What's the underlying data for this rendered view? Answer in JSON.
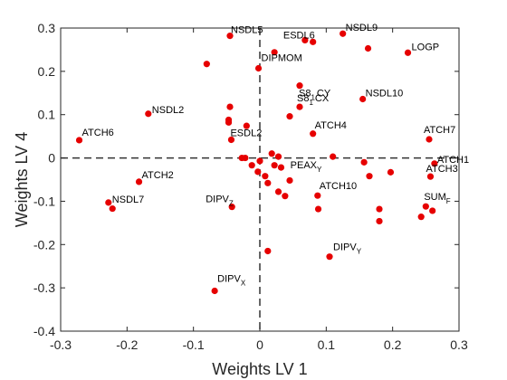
{
  "chart_data": {
    "type": "scatter",
    "title": "",
    "xlabel": "Weights LV 1",
    "ylabel": "Weights LV 4",
    "xlim": [
      -0.3,
      0.3
    ],
    "ylim": [
      -0.4,
      0.3
    ],
    "xticks": [
      "-0.3",
      "-0.2",
      "-0.1",
      "0",
      "0.1",
      "0.2",
      "0.3"
    ],
    "yticks": [
      "-0.4",
      "-0.3",
      "-0.2",
      "-0.1",
      "0",
      "0.1",
      "0.2",
      "0.3"
    ],
    "x_tick_values": [
      -0.3,
      -0.2,
      -0.1,
      0,
      0.1,
      0.2,
      0.3
    ],
    "y_tick_values": [
      -0.4,
      -0.3,
      -0.2,
      -0.1,
      0,
      0.1,
      0.2,
      0.3
    ],
    "grid": false,
    "zero_lines": "dashed",
    "marker_color": "#e60000",
    "points": [
      {
        "x": -0.045,
        "y": 0.282,
        "label": "NSDL5"
      },
      {
        "x": 0.068,
        "y": 0.272,
        "label": "ESDL6"
      },
      {
        "x": 0.125,
        "y": 0.287,
        "label": "NSDL9"
      },
      {
        "x": 0.163,
        "y": 0.253
      },
      {
        "x": 0.223,
        "y": 0.243,
        "label": "LOGP"
      },
      {
        "x": -0.08,
        "y": 0.217
      },
      {
        "x": -0.002,
        "y": 0.207,
        "label": "DIPMOM"
      },
      {
        "x": 0.022,
        "y": 0.244
      },
      {
        "x": 0.08,
        "y": 0.268
      },
      {
        "x": 0.06,
        "y": 0.167,
        "label": "S81CY",
        "label_parts": [
          "S8",
          "1",
          "CY"
        ]
      },
      {
        "x": 0.155,
        "y": 0.136,
        "label": "NSDL10"
      },
      {
        "x": -0.168,
        "y": 0.102,
        "label": "NSDL2"
      },
      {
        "x": -0.045,
        "y": 0.118
      },
      {
        "x": -0.047,
        "y": 0.088
      },
      {
        "x": -0.047,
        "y": 0.082
      },
      {
        "x": -0.02,
        "y": 0.074
      },
      {
        "x": -0.043,
        "y": 0.042,
        "label": "ESDL2"
      },
      {
        "x": 0.06,
        "y": 0.118,
        "label": "S81CX",
        "label_parts": [
          "S8",
          "1",
          "CX"
        ]
      },
      {
        "x": 0.045,
        "y": 0.096
      },
      {
        "x": 0.08,
        "y": 0.056,
        "label": "ATCH4"
      },
      {
        "x": -0.272,
        "y": 0.041,
        "label": "ATCH6"
      },
      {
        "x": 0.255,
        "y": 0.043,
        "label": "ATCH7"
      },
      {
        "x": 0.263,
        "y": -0.013,
        "label": "ATCH1"
      },
      {
        "x": 0.257,
        "y": -0.043,
        "label": "ATCH3"
      },
      {
        "x": 0.11,
        "y": 0.003,
        "label": "PEAXY",
        "label_parts": [
          "PEAX",
          "Y",
          ""
        ]
      },
      {
        "x": -0.027,
        "y": 0.0
      },
      {
        "x": -0.022,
        "y": 0.0
      },
      {
        "x": 0.018,
        "y": 0.01
      },
      {
        "x": 0.028,
        "y": 0.003
      },
      {
        "x": 0.0,
        "y": -0.007
      },
      {
        "x": -0.012,
        "y": -0.017
      },
      {
        "x": 0.022,
        "y": -0.017
      },
      {
        "x": 0.032,
        "y": -0.022
      },
      {
        "x": -0.003,
        "y": -0.032
      },
      {
        "x": 0.008,
        "y": -0.042
      },
      {
        "x": 0.012,
        "y": -0.058
      },
      {
        "x": 0.045,
        "y": -0.052
      },
      {
        "x": 0.157,
        "y": -0.01
      },
      {
        "x": 0.165,
        "y": -0.042
      },
      {
        "x": 0.197,
        "y": -0.033
      },
      {
        "x": -0.182,
        "y": -0.055,
        "label": "ATCH2"
      },
      {
        "x": 0.028,
        "y": -0.078
      },
      {
        "x": 0.038,
        "y": -0.088
      },
      {
        "x": 0.087,
        "y": -0.087,
        "label": "ATCH10"
      },
      {
        "x": -0.228,
        "y": -0.103,
        "label": "NSDL7"
      },
      {
        "x": -0.222,
        "y": -0.117
      },
      {
        "x": -0.042,
        "y": -0.113,
        "label": "DIPVZ",
        "label_parts": [
          "DIPV",
          "Z",
          ""
        ]
      },
      {
        "x": 0.088,
        "y": -0.118
      },
      {
        "x": 0.18,
        "y": -0.118
      },
      {
        "x": 0.18,
        "y": -0.146
      },
      {
        "x": 0.25,
        "y": -0.112,
        "label": "SUMF",
        "label_parts": [
          "SUM",
          "F",
          ""
        ]
      },
      {
        "x": 0.26,
        "y": -0.122
      },
      {
        "x": 0.243,
        "y": -0.136
      },
      {
        "x": 0.012,
        "y": -0.215
      },
      {
        "x": 0.105,
        "y": -0.228,
        "label": "DIPVY",
        "label_parts": [
          "DIPV",
          "Y",
          ""
        ]
      },
      {
        "x": -0.068,
        "y": -0.307,
        "label": "DIPVX",
        "label_parts": [
          "DIPV",
          "X",
          ""
        ]
      }
    ]
  }
}
